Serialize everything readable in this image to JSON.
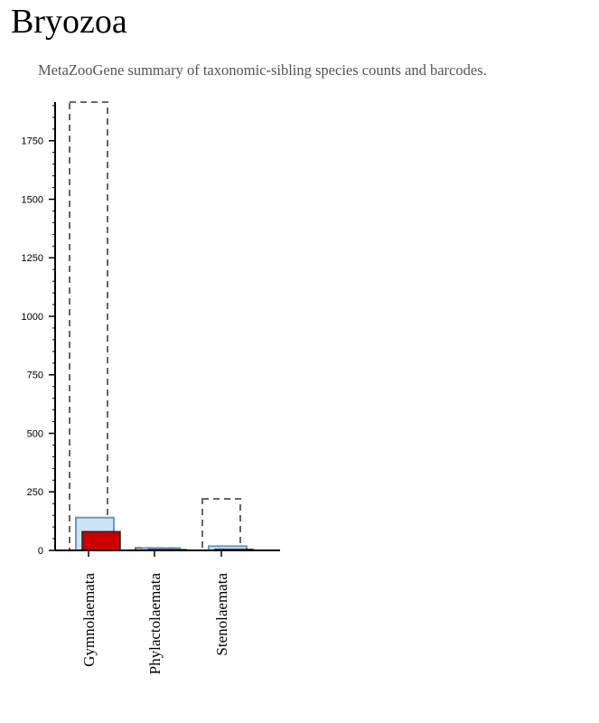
{
  "page": {
    "title": "Bryozoa",
    "subtitle": "MetaZooGene summary of taxonomic-sibling species counts and barcodes."
  },
  "chart_data": {
    "type": "bar",
    "categories": [
      "Gymnolaemata",
      "Phylactolaemata",
      "Stenolaemata"
    ],
    "series": [
      {
        "values": [
          1915,
          10,
          220
        ],
        "style": "dashed-outline",
        "color": "#666666"
      },
      {
        "values": [
          140,
          10,
          18
        ],
        "style": "filled",
        "color": "#cfe3f7"
      },
      {
        "values": [
          80,
          3,
          4
        ],
        "style": "filled",
        "color": "#cc0000"
      }
    ],
    "ylim": [
      0,
      1915
    ],
    "yticks": [
      0,
      250,
      500,
      750,
      1000,
      1250,
      1500,
      1750
    ],
    "colors": {
      "outline_blue": "#6699cc",
      "red": "#cc0000",
      "dashed": "#666666"
    }
  }
}
